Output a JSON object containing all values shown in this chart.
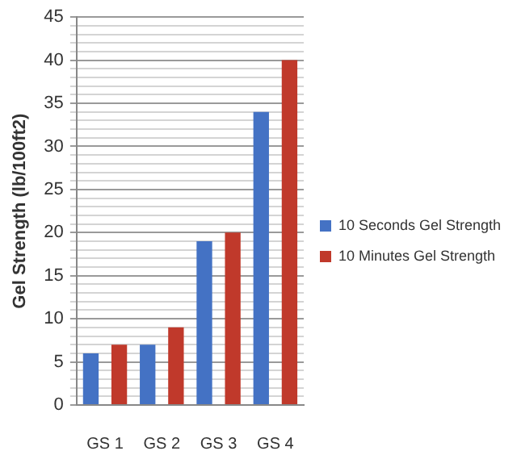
{
  "chart_data": {
    "type": "bar",
    "ylabel": "Gel Strength (lb/100ft2)",
    "categories": [
      "GS 1",
      "GS 2",
      "GS 3",
      "GS 4"
    ],
    "series": [
      {
        "name": "10 Seconds Gel Strength",
        "color": "#4472c4",
        "values": [
          6,
          7,
          19,
          34
        ]
      },
      {
        "name": "10 Minutes Gel Strength",
        "color": "#c0392b",
        "values": [
          7,
          9,
          20,
          40
        ]
      }
    ],
    "ylim": [
      0,
      45
    ],
    "yticks": [
      0,
      {
        "value": 1,
        "label": null
      },
      {
        "value": 2,
        "label": null
      },
      {
        "value": 3,
        "label": null
      },
      {
        "value": 4,
        "label": null
      },
      5,
      {
        "value": 6,
        "label": null
      },
      {
        "value": 7,
        "label": null
      },
      {
        "value": 8,
        "label": null
      },
      {
        "value": 9,
        "label": null
      },
      10,
      {
        "value": 11,
        "label": null
      },
      {
        "value": 12,
        "label": null
      },
      {
        "value": 13,
        "label": null
      },
      {
        "value": 14,
        "label": null
      },
      15,
      {
        "value": 16,
        "label": null
      },
      {
        "value": 17,
        "label": null
      },
      {
        "value": 18,
        "label": null
      },
      {
        "value": 19,
        "label": null
      },
      20,
      {
        "value": 21,
        "label": null
      },
      {
        "value": 22,
        "label": null
      },
      {
        "value": 23,
        "label": null
      },
      {
        "value": 24,
        "label": null
      },
      25,
      {
        "value": 26,
        "label": null
      },
      {
        "value": 27,
        "label": null
      },
      {
        "value": 28,
        "label": null
      },
      {
        "value": 29,
        "label": null
      },
      30,
      {
        "value": 31,
        "label": null
      },
      {
        "value": 32,
        "label": null
      },
      {
        "value": 33,
        "label": null
      },
      {
        "value": 34,
        "label": null
      },
      35,
      {
        "value": 36,
        "label": null
      },
      {
        "value": 37,
        "label": null
      },
      {
        "value": 38,
        "label": null
      },
      {
        "value": 39,
        "label": null
      },
      40,
      {
        "value": 41,
        "label": null
      },
      {
        "value": 42,
        "label": null
      },
      {
        "value": 43,
        "label": null
      },
      {
        "value": 44,
        "label": null
      },
      45
    ],
    "grid": "y",
    "legend": "right"
  }
}
